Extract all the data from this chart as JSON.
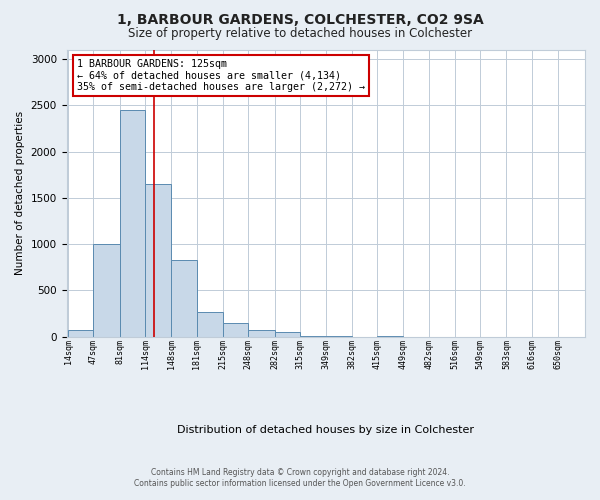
{
  "title": "1, BARBOUR GARDENS, COLCHESTER, CO2 9SA",
  "subtitle": "Size of property relative to detached houses in Colchester",
  "xlabel": "Distribution of detached houses by size in Colchester",
  "ylabel": "Number of detached properties",
  "bar_edges": [
    14,
    47,
    81,
    114,
    148,
    181,
    215,
    248,
    282,
    315,
    349,
    382,
    415,
    449,
    482,
    516,
    549,
    583,
    616,
    650,
    683
  ],
  "bar_heights": [
    75,
    1000,
    2450,
    1650,
    830,
    270,
    150,
    75,
    50,
    10,
    5,
    0,
    5,
    0,
    0,
    0,
    0,
    0,
    0,
    0
  ],
  "bar_color": "#c8d8e8",
  "bar_edge_color": "#5a8ab0",
  "property_line_x": 125,
  "property_line_color": "#cc0000",
  "annotation_text": "1 BARBOUR GARDENS: 125sqm\n← 64% of detached houses are smaller (4,134)\n35% of semi-detached houses are larger (2,272) →",
  "annotation_box_color": "#cc0000",
  "ylim": [
    0,
    3100
  ],
  "yticks": [
    0,
    500,
    1000,
    1500,
    2000,
    2500,
    3000
  ],
  "footer_line1": "Contains HM Land Registry data © Crown copyright and database right 2024.",
  "footer_line2": "Contains public sector information licensed under the Open Government Licence v3.0.",
  "background_color": "#e8eef4",
  "plot_background_color": "#ffffff",
  "grid_color": "#c0ccd8"
}
